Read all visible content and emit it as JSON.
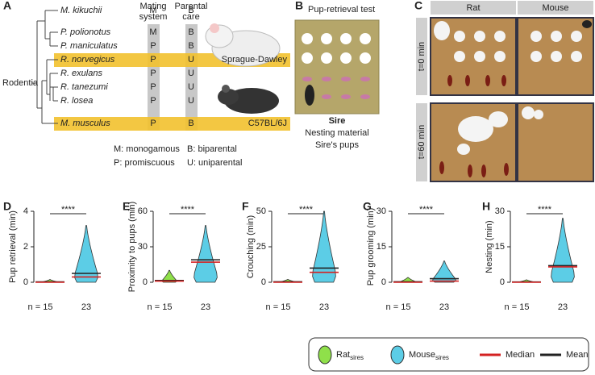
{
  "panel_labels": [
    "A",
    "B",
    "C",
    "D",
    "E",
    "F",
    "G",
    "H"
  ],
  "phylogeny": {
    "column_headers": [
      [
        "Mating",
        "system"
      ],
      [
        "Parental",
        "care"
      ]
    ],
    "group": "Rodentia",
    "species": [
      {
        "name": "M. kikuchii",
        "mating": "M",
        "care": "B"
      },
      {
        "name": "P. polionotus",
        "mating": "M",
        "care": "B"
      },
      {
        "name": "P. maniculatus",
        "mating": "P",
        "care": "B"
      },
      {
        "name": "R. norvegicus",
        "mating": "P",
        "care": "U",
        "strain": "Sprague-Dawley"
      },
      {
        "name": "R. exulans",
        "mating": "P",
        "care": "U"
      },
      {
        "name": "R. tanezumi",
        "mating": "P",
        "care": "U"
      },
      {
        "name": "R. losea",
        "mating": "P",
        "care": "U"
      },
      {
        "name": "M. musculus",
        "mating": "P",
        "care": "B",
        "strain": "C57BL/6J"
      }
    ],
    "key": [
      "M: monogamous",
      "P: promiscuous",
      "B: biparental",
      "U: uniparental"
    ]
  },
  "pup_retrieval_test": {
    "title": "Pup-retrieval test",
    "key": [
      "Sire",
      "Nesting material",
      "Sire's pups"
    ]
  },
  "photo_grid": {
    "columns": [
      "Rat",
      "Mouse"
    ],
    "rows": [
      "t=0 min",
      "t=60 min"
    ]
  },
  "legend": {
    "items": [
      {
        "label": "Rat",
        "sub": "sires",
        "color": "#8fe04a"
      },
      {
        "label": "Mouse",
        "sub": "sires",
        "color": "#5ccde6"
      },
      {
        "label": "Median",
        "color": "#d42222"
      },
      {
        "label": "Mean",
        "color": "#222222"
      }
    ]
  },
  "chart_data": [
    {
      "type": "violin",
      "ylabel": "Pup retrieval (min)",
      "categories": [
        "n = 15",
        "23"
      ],
      "significance": "****",
      "ylim": [
        0,
        4
      ],
      "yticks": [
        0,
        2,
        4
      ],
      "series": [
        {
          "median": 0,
          "mean": 0.02,
          "max": 0.15
        },
        {
          "median": 0.3,
          "mean": 0.5,
          "max": 3.2
        }
      ]
    },
    {
      "type": "violin",
      "ylabel": "Proximity to pups (min)",
      "categories": [
        "n = 15",
        "23"
      ],
      "significance": "****",
      "ylim": [
        0,
        60
      ],
      "yticks": [
        0,
        30,
        60
      ],
      "series": [
        {
          "median": 1,
          "mean": 1.5,
          "max": 10
        },
        {
          "median": 17,
          "mean": 19,
          "max": 48
        }
      ]
    },
    {
      "type": "violin",
      "ylabel": "Crouching (min)",
      "categories": [
        "n = 15",
        "23"
      ],
      "significance": "****",
      "ylim": [
        0,
        50
      ],
      "yticks": [
        0,
        25,
        50
      ],
      "series": [
        {
          "median": 0,
          "mean": 0.3,
          "max": 2
        },
        {
          "median": 7,
          "mean": 10,
          "max": 50
        }
      ]
    },
    {
      "type": "violin",
      "ylabel": "Pup grooming (min)",
      "categories": [
        "n = 15",
        "23"
      ],
      "significance": "****",
      "ylim": [
        0,
        30
      ],
      "yticks": [
        0,
        15,
        30
      ],
      "series": [
        {
          "median": 0,
          "mean": 0.2,
          "max": 2
        },
        {
          "median": 0.5,
          "mean": 1.5,
          "max": 9
        }
      ]
    },
    {
      "type": "violin",
      "ylabel": "Nesting (min)",
      "categories": [
        "n = 15",
        "23"
      ],
      "significance": "****",
      "ylim": [
        0,
        30
      ],
      "yticks": [
        0,
        15,
        30
      ],
      "series": [
        {
          "median": 0,
          "mean": 0.1,
          "max": 1
        },
        {
          "median": 6.5,
          "mean": 7,
          "max": 27
        }
      ]
    }
  ]
}
